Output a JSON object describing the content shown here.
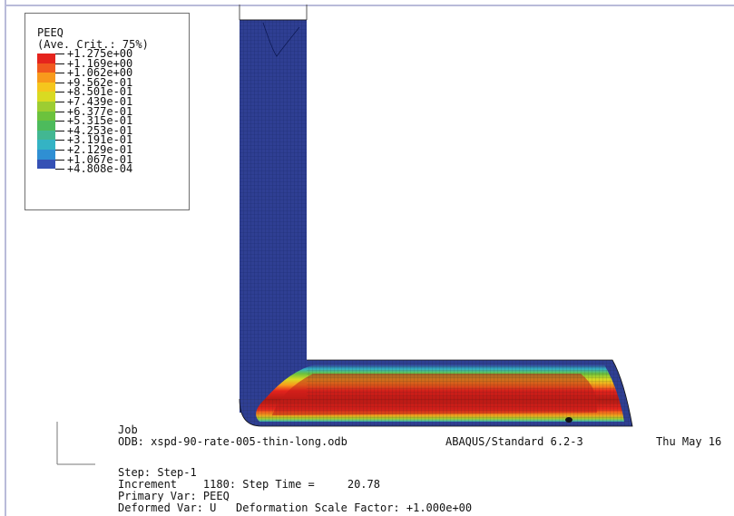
{
  "legend": {
    "title": "PEEQ",
    "subtitle": "(Ave. Crit.: 75%)",
    "entries": [
      {
        "value": "+1.275e+00",
        "color": "#e5241d"
      },
      {
        "value": "+1.169e+00",
        "color": "#f0591f"
      },
      {
        "value": "+1.062e+00",
        "color": "#f89a1c"
      },
      {
        "value": "+9.562e-01",
        "color": "#f5c61d"
      },
      {
        "value": "+8.501e-01",
        "color": "#d9da22"
      },
      {
        "value": "+7.439e-01",
        "color": "#9dcd32"
      },
      {
        "value": "+6.377e-01",
        "color": "#6cc23d"
      },
      {
        "value": "+5.315e-01",
        "color": "#4dbb5c"
      },
      {
        "value": "+4.253e-01",
        "color": "#42b792"
      },
      {
        "value": "+3.191e-01",
        "color": "#34b3c4"
      },
      {
        "value": "+2.129e-01",
        "color": "#2f8fd3"
      },
      {
        "value": "+1.067e-01",
        "color": "#3551b5"
      },
      {
        "value": "+4.808e-04",
        "color": "#2f3f93"
      }
    ]
  },
  "info": {
    "job_label": "Job",
    "odb_line": "ODB: xspd-90-rate-005-thin-long.odb",
    "solver": "ABAQUS/Standard 6.2-3",
    "date": "Thu May 16",
    "step_line": "Step: Step-1",
    "increment_line": "Increment    1180: Step Time =     20.78",
    "primary_var": "Primary Var: PEEQ",
    "deformed_var": "Deformed Var: U   Deformation Scale Factor: +1.000e+00"
  },
  "colors": {
    "mesh_blue": "#2f3f93",
    "hot_red": "#b21a14",
    "frame_border": "#b9bbd9"
  }
}
